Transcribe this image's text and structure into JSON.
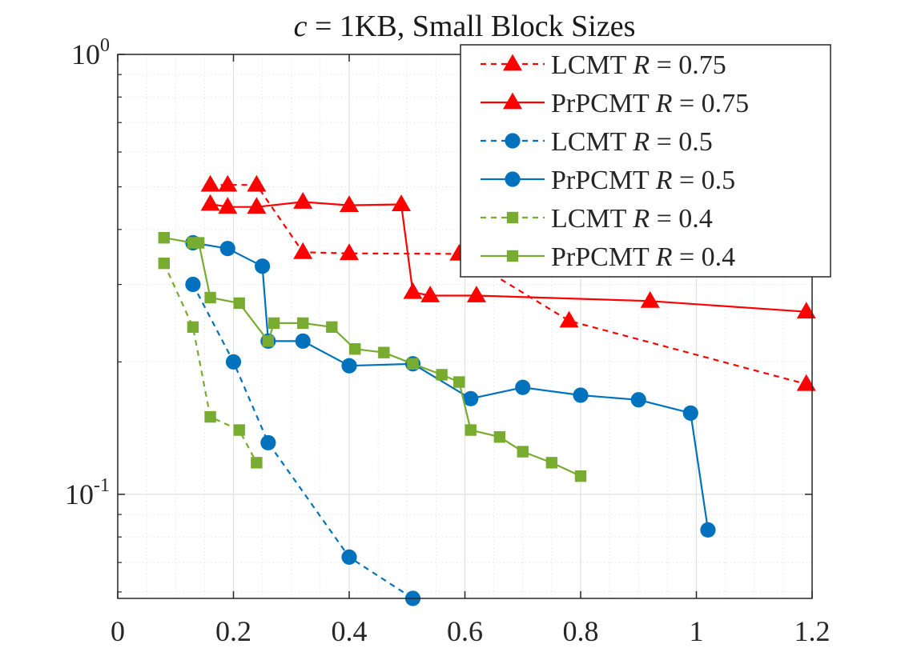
{
  "chart_data": {
    "type": "line",
    "title_prefix": "c",
    "title_suffix": " = 1KB, Small Block Sizes",
    "xlabel": "",
    "ylabel": "",
    "xscale": "linear",
    "yscale": "log",
    "xlim": [
      0,
      1.2
    ],
    "ylim": [
      0.058,
      1.0
    ],
    "x_ticks": [
      0,
      0.2,
      0.4,
      0.6,
      0.8,
      1,
      1.2
    ],
    "x_tick_labels": [
      "0",
      "0.2",
      "0.4",
      "0.6",
      "0.8",
      "1",
      "1.2"
    ],
    "y_ticks": [
      {
        "value": 1.0,
        "base": "10",
        "exp": "0"
      },
      {
        "value": 0.1,
        "base": "10",
        "exp": "-1"
      }
    ],
    "grid": true,
    "legend_position": "top-right",
    "series": [
      {
        "id": "lcmt-075",
        "name": "LCMT",
        "r_value": "0.75",
        "color": "#ff0000",
        "line_style": "dashed",
        "marker": "triangle",
        "x": [
          0.16,
          0.19,
          0.24,
          0.32,
          0.4,
          0.59,
          0.78,
          1.19
        ],
        "y": [
          0.505,
          0.505,
          0.505,
          0.355,
          0.353,
          0.352,
          0.248,
          0.178
        ]
      },
      {
        "id": "prpcmt-075",
        "name": "PrPCMT",
        "r_value": "0.75",
        "color": "#ff0000",
        "line_style": "solid",
        "marker": "triangle",
        "x": [
          0.16,
          0.19,
          0.24,
          0.32,
          0.4,
          0.49,
          0.51,
          0.54,
          0.62,
          0.92,
          1.19
        ],
        "y": [
          0.457,
          0.45,
          0.45,
          0.462,
          0.454,
          0.456,
          0.288,
          0.283,
          0.283,
          0.275,
          0.26
        ]
      },
      {
        "id": "lcmt-05",
        "name": "LCMT",
        "r_value": "0.5",
        "color": "#0072bd",
        "line_style": "dashed",
        "marker": "circle",
        "x": [
          0.13,
          0.2,
          0.26,
          0.4,
          0.51
        ],
        "y": [
          0.3,
          0.2,
          0.131,
          0.072,
          0.058
        ]
      },
      {
        "id": "prpcmt-05",
        "name": "PrPCMT",
        "r_value": "0.5",
        "color": "#0072bd",
        "line_style": "solid",
        "marker": "circle",
        "x": [
          0.13,
          0.19,
          0.25,
          0.26,
          0.32,
          0.4,
          0.51,
          0.61,
          0.7,
          0.8,
          0.9,
          0.99,
          1.02
        ],
        "y": [
          0.373,
          0.362,
          0.33,
          0.223,
          0.223,
          0.196,
          0.198,
          0.165,
          0.175,
          0.168,
          0.164,
          0.153,
          0.083
        ]
      },
      {
        "id": "lcmt-04",
        "name": "LCMT",
        "r_value": "0.4",
        "color": "#77ac30",
        "line_style": "dashed",
        "marker": "square",
        "x": [
          0.08,
          0.13,
          0.16,
          0.21,
          0.24
        ],
        "y": [
          0.335,
          0.24,
          0.15,
          0.14,
          0.118
        ]
      },
      {
        "id": "prpcmt-04",
        "name": "PrPCMT",
        "r_value": "0.4",
        "color": "#77ac30",
        "line_style": "solid",
        "marker": "square",
        "x": [
          0.08,
          0.13,
          0.14,
          0.16,
          0.21,
          0.26,
          0.27,
          0.32,
          0.37,
          0.41,
          0.46,
          0.51,
          0.56,
          0.59,
          0.61,
          0.66,
          0.7,
          0.75,
          0.8
        ],
        "y": [
          0.383,
          0.373,
          0.373,
          0.28,
          0.272,
          0.223,
          0.245,
          0.245,
          0.24,
          0.214,
          0.21,
          0.198,
          0.187,
          0.18,
          0.14,
          0.135,
          0.125,
          0.118,
          0.11
        ]
      }
    ]
  }
}
